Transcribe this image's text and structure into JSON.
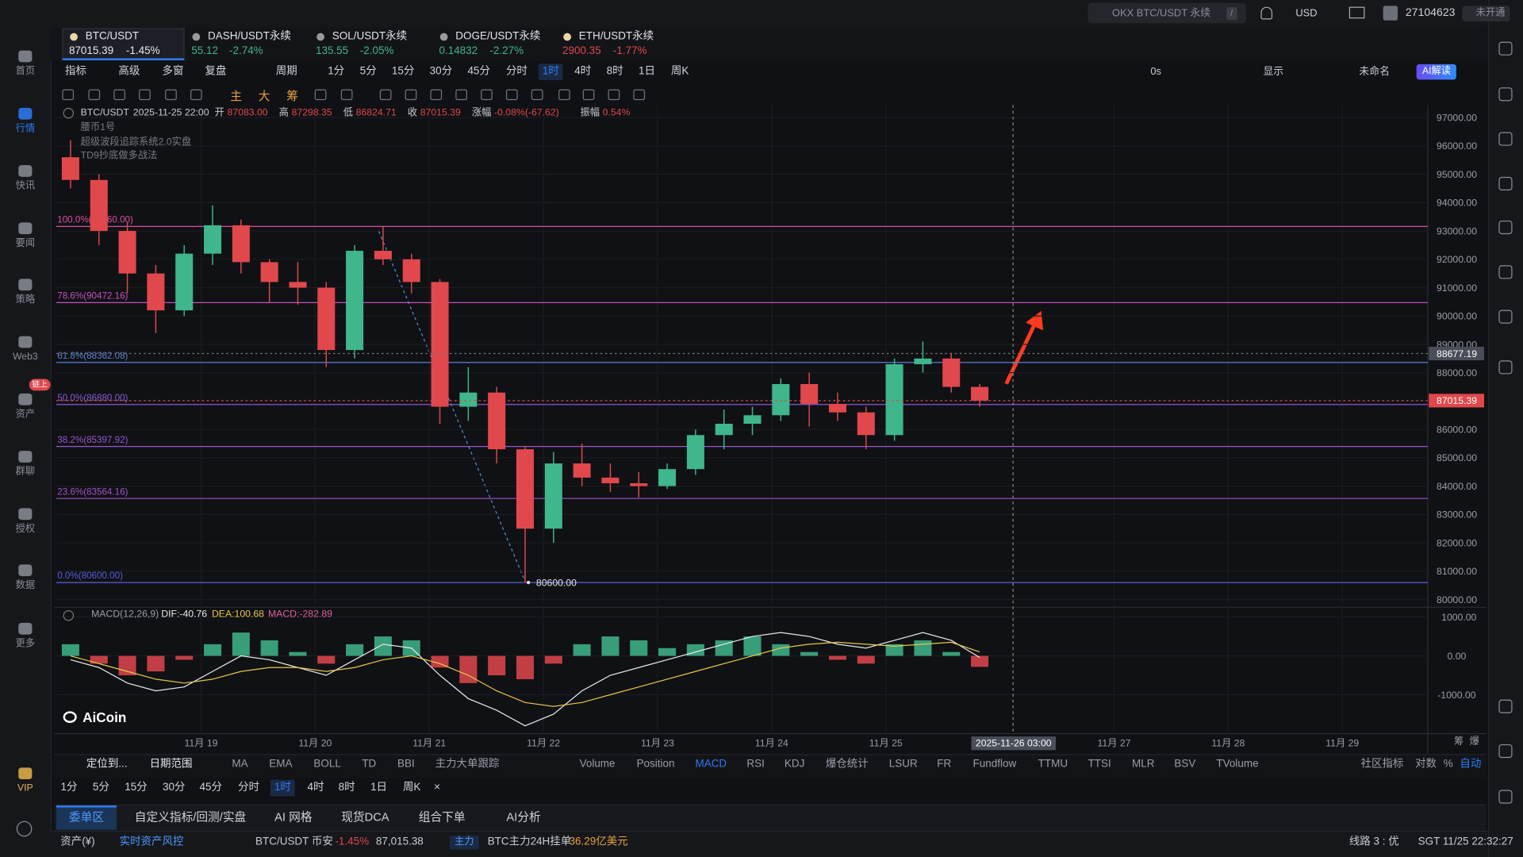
{
  "top_bar": {
    "search": "OKX BTC/USDT 永续",
    "search_key": "/",
    "currency": "USD",
    "user_id": "27104623",
    "status": "未开通"
  },
  "sidebar": {
    "items": [
      "首页",
      "行情",
      "快讯",
      "要闻",
      "策略",
      "Web3",
      "资产",
      "群聊",
      "授权",
      "数据",
      "更多",
      "VIP"
    ],
    "active": 1,
    "badge": "链上"
  },
  "tabs": [
    {
      "symbol": "BTC/USDT",
      "price": "87015.39",
      "change": "-1.45%",
      "color": "#e8eaee"
    },
    {
      "symbol": "DASH/USDT永续",
      "price": "55.12",
      "change": "-2.74%",
      "color": "#3fb68b"
    },
    {
      "symbol": "SOL/USDT永续",
      "price": "135.55",
      "change": "-2.05%",
      "color": "#3fb68b"
    },
    {
      "symbol": "DOGE/USDT永续",
      "price": "0.14832",
      "change": "-2.27%",
      "color": "#3fb68b"
    },
    {
      "symbol": "ETH/USDT永续",
      "price": "2900.35",
      "change": "-1.77%",
      "color": "#e0484c"
    }
  ],
  "toolbar": {
    "left": [
      "指标",
      "高级",
      "多窗",
      "复盘",
      "周期"
    ],
    "intervals": [
      "1分",
      "5分",
      "15分",
      "30分",
      "45分",
      "分时",
      "1时",
      "4时",
      "8时",
      "1日",
      "周K"
    ],
    "active_interval": 6,
    "right": [
      "0s",
      "显示",
      "未命名",
      "AI解读"
    ]
  },
  "draw_tools": [
    "主",
    "大",
    "筹"
  ],
  "chart": {
    "info": {
      "symbol": "BTC/USDT",
      "time": "2025-11-25 22:00",
      "fields": [
        [
          "开",
          "87083.00"
        ],
        [
          "高",
          "87298.35"
        ],
        [
          "低",
          "86824.71"
        ],
        [
          "收",
          "87015.39"
        ],
        [
          "涨幅",
          "-0.08%(-67.62)"
        ],
        [
          "振幅",
          "0.54%"
        ]
      ]
    },
    "indicators": [
      "腰币1号",
      "超级波段追踪系统2.0实盘",
      "TD9抄底做多战法"
    ],
    "ylim": [
      79726,
      97308
    ],
    "yticks": [
      {
        "value": 97000,
        "label": "97000.00"
      },
      {
        "value": 96000,
        "label": "96000.00"
      },
      {
        "value": 95000,
        "label": "95000.00"
      },
      {
        "value": 94000,
        "label": "94000.00"
      },
      {
        "value": 93000,
        "label": "93000.00"
      },
      {
        "value": 92000,
        "label": "92000.00"
      },
      {
        "value": 91000,
        "label": "91000.00"
      },
      {
        "value": 90000,
        "label": "90000.00"
      },
      {
        "value": 89000,
        "label": "89000.00"
      },
      {
        "value": 88000,
        "label": "88000.00"
      },
      {
        "value": 87000,
        "label": "87000.00"
      },
      {
        "value": 86000,
        "label": "86000.00"
      },
      {
        "value": 85000,
        "label": "85000.00"
      },
      {
        "value": 84000,
        "label": "84000.00"
      },
      {
        "value": 83000,
        "label": "83000.00"
      },
      {
        "value": 82000,
        "label": "82000.00"
      },
      {
        "value": 81000,
        "label": "81000.00"
      },
      {
        "value": 80000,
        "label": "80000.00"
      }
    ],
    "up_color": "#3fb68b",
    "down_color": "#e0484c",
    "candles": [
      [
        95600,
        96200,
        94500,
        94800
      ],
      [
        94800,
        95000,
        92500,
        93000
      ],
      [
        93000,
        93300,
        90800,
        91500
      ],
      [
        91500,
        91800,
        89400,
        90200
      ],
      [
        90200,
        92500,
        90000,
        92200
      ],
      [
        92200,
        93900,
        91800,
        93200
      ],
      [
        93200,
        93400,
        91500,
        91900
      ],
      [
        91900,
        92000,
        90500,
        91200
      ],
      [
        91200,
        91900,
        90400,
        91000
      ],
      [
        91000,
        91200,
        88200,
        88800
      ],
      [
        88800,
        92500,
        88500,
        92300
      ],
      [
        92300,
        93160,
        91800,
        92000
      ],
      [
        92000,
        92200,
        90800,
        91200
      ],
      [
        91200,
        91300,
        86200,
        86800
      ],
      [
        86800,
        88200,
        86300,
        87300
      ],
      [
        87300,
        87500,
        84800,
        85300
      ],
      [
        85300,
        85400,
        80600,
        82500
      ],
      [
        82500,
        85200,
        82000,
        84800
      ],
      [
        84800,
        85500,
        84000,
        84300
      ],
      [
        84300,
        84800,
        83800,
        84100
      ],
      [
        84100,
        84500,
        83600,
        84000
      ],
      [
        84000,
        84800,
        83900,
        84600
      ],
      [
        84600,
        86000,
        84400,
        85800
      ],
      [
        85800,
        86700,
        85300,
        86200
      ],
      [
        86200,
        86800,
        85800,
        86500
      ],
      [
        86500,
        87800,
        86300,
        87600
      ],
      [
        87600,
        88000,
        86100,
        86900
      ],
      [
        86900,
        87300,
        86300,
        86600
      ],
      [
        86600,
        86800,
        85300,
        85800
      ],
      [
        85800,
        88500,
        85600,
        88300
      ],
      [
        88300,
        89100,
        88000,
        88500
      ],
      [
        88500,
        88700,
        87300,
        87500
      ],
      [
        87500,
        87600,
        86800,
        87015.39
      ]
    ],
    "fib": [
      {
        "label": "100.0%(93160.00)",
        "value": 93160,
        "color": "#d94fa0"
      },
      {
        "label": "78.6%(90472.16)",
        "value": 90472.16,
        "color": "#c74fc0"
      },
      {
        "label": "61.8%(88362.08)",
        "value": 88362.08,
        "color": "#5b7fd6"
      },
      {
        "label": "50.0%(86880.00)",
        "value": 86880,
        "color": "#8a5ad6"
      },
      {
        "label": "38.2%(85397.92)",
        "value": 85397.92,
        "color": "#9a55d0"
      },
      {
        "label": "23.6%(83564.16)",
        "value": 83564.16,
        "color": "#a052c8"
      },
      {
        "label": "0.0%(80600.00)",
        "value": 80600,
        "color": "#5a5ee0"
      }
    ],
    "price_tags": [
      {
        "label": "88677.19",
        "value": 88677.19,
        "color": "#4a4e58"
      },
      {
        "label": "87015.39",
        "value": 87015.39,
        "color": "#e0484c"
      }
    ],
    "low_label": {
      "label": "80600.00",
      "value": 80600
    },
    "macd": {
      "title": "MACD(12,26,9)",
      "dif_label": "DIF:-40.76",
      "dea_label": "DEA:100.68",
      "macd_label": "MACD:-282.89",
      "ylim": [
        -1925,
        1250
      ],
      "yticks": [
        {
          "value": 1000,
          "label": "1000.00"
        },
        {
          "value": 0,
          "label": "0.00"
        },
        {
          "value": -1000,
          "label": "-1000.00"
        }
      ],
      "hist": [
        300,
        -200,
        -500,
        -400,
        -100,
        300,
        600,
        400,
        100,
        -200,
        300,
        500,
        400,
        -300,
        -700,
        -500,
        -600,
        -200,
        300,
        500,
        400,
        200,
        300,
        400,
        500,
        300,
        100,
        -100,
        -200,
        300,
        400,
        100,
        -282.89
      ],
      "dif": [
        -100,
        -300,
        -700,
        -900,
        -800,
        -400,
        0,
        -100,
        -300,
        -500,
        -100,
        300,
        200,
        -500,
        -1100,
        -1400,
        -1800,
        -1500,
        -900,
        -500,
        -300,
        -100,
        100,
        300,
        500,
        600,
        500,
        300,
        200,
        400,
        600,
        400,
        -40.76
      ],
      "dea": [
        0,
        -200,
        -400,
        -600,
        -700,
        -600,
        -400,
        -300,
        -300,
        -400,
        -300,
        -100,
        0,
        -200,
        -500,
        -900,
        -1200,
        -1300,
        -1200,
        -1000,
        -800,
        -600,
        -400,
        -200,
        0,
        200,
        300,
        350,
        300,
        250,
        300,
        350,
        100.68
      ]
    },
    "dates": [
      "11月 19",
      "11月 20",
      "11月 21",
      "11月 22",
      "11月 23",
      "11月 24",
      "11月 25",
      "11月 27",
      "11月 28",
      "11月 29"
    ],
    "crosshair_time": "2025-11-26 03:00",
    "axis_corner": [
      "筹",
      "爆"
    ],
    "logo": "AiCoin"
  },
  "indicator_bar": {
    "left": [
      "定位到...",
      "日期范围",
      "MA",
      "EMA",
      "BOLL",
      "TD",
      "BBI",
      "主力大单跟踪"
    ],
    "indicators": [
      "Volume",
      "Position",
      "MACD",
      "RSI",
      "KDJ",
      "爆仓统计",
      "LSUR",
      "FR",
      "Fundflow",
      "TTMU",
      "TTSI",
      "MLR",
      "BSV",
      "TVolume"
    ],
    "active_indicator": 2,
    "right": [
      "社区指标",
      "对数",
      "%",
      "自动"
    ]
  },
  "bottom_intervals": {
    "items": [
      "1分",
      "5分",
      "15分",
      "30分",
      "45分",
      "分时",
      "1时",
      "4时",
      "8时",
      "1日",
      "周K",
      "×"
    ],
    "active": 6
  },
  "panel_tabs": {
    "items": [
      "委单区",
      "自定义指标/回测/实盘",
      "AI 网格",
      "现货DCA",
      "组合下单",
      "AI分析"
    ],
    "active": 0
  },
  "status_bar": {
    "assets": "资产(¥)",
    "risk": "实时资产风控",
    "pair": "BTC/USDT 币安",
    "change": "-1.45%",
    "price": "87,015.38",
    "badge": "主力",
    "order_label": "BTC主力24H挂单",
    "order_value": "36.29亿美元",
    "line": "线路 3 : 优",
    "clock": "SGT 11/25 22:32:27"
  }
}
